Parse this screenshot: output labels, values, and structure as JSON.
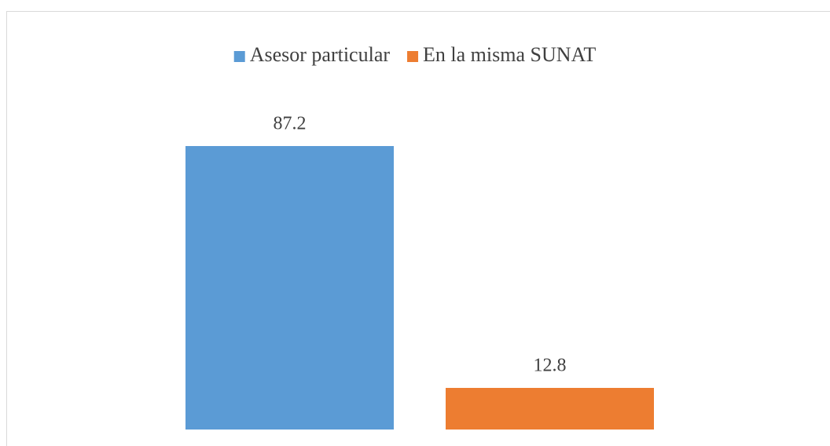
{
  "chart_data": {
    "type": "bar",
    "categories": [
      null
    ],
    "series": [
      {
        "name": "Asesor particular",
        "color": "#5b9bd5",
        "values": [
          87.2
        ]
      },
      {
        "name": "En la misma SUNAT",
        "color": "#ed7d31",
        "values": [
          12.8
        ]
      }
    ],
    "ylim": [
      0,
      100
    ],
    "legend": "top"
  }
}
